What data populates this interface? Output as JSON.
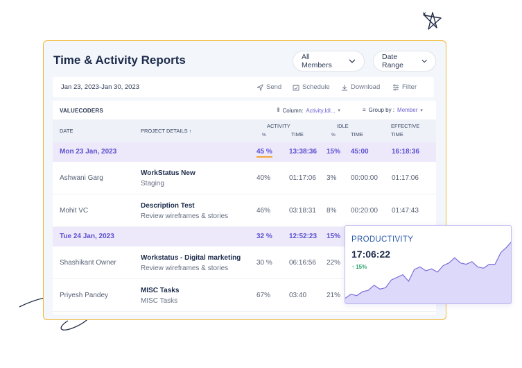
{
  "header": {
    "title": "Time & Activity Reports",
    "members_dropdown": "All Members",
    "date_dropdown": "Date Range"
  },
  "toolbar": {
    "date_range": "Jan 23, 2023-Jan 30, 2023",
    "send": "Send",
    "schedule": "Schedule",
    "download": "Download",
    "filter": "Filter"
  },
  "table": {
    "org": "VALUECODERS",
    "column_label": "Column:",
    "column_value": "Activity,Idl...",
    "groupby_label": "Group by :",
    "groupby_value": "Member",
    "headers": {
      "date": "DATE",
      "project": "PROJECT DETAILS ↑",
      "activity": "ACTIVITY",
      "activity_pct": "%",
      "activity_time": "TIME",
      "idle": "IDLE",
      "idle_pct": "%",
      "idle_time": "TIME",
      "effective": "EFFECTIVE",
      "effective_time": "TIME"
    },
    "day1": {
      "date": "Mon 23 Jan, 2023",
      "activity_pct": "45 %",
      "activity_time": "13:38:36",
      "idle_pct": "15%",
      "idle_time": "45:00",
      "effective": "16:18:36"
    },
    "row1": {
      "member": "Ashwani Garg",
      "project": "WorkStatus New",
      "task": "Staging",
      "activity_pct": "40%",
      "activity_time": "01:17:06",
      "idle_pct": "3%",
      "idle_time": "00:00:00",
      "effective": "01:17:06"
    },
    "row2": {
      "member": "Mohit VC",
      "project": "Description Test",
      "task": "Review wireframes & stories",
      "activity_pct": "46%",
      "activity_time": "03:18:31",
      "idle_pct": "8%",
      "idle_time": "00:20:00",
      "effective": "01:47:43"
    },
    "day2": {
      "date": "Tue 24 Jan, 2023",
      "activity_pct": "32 %",
      "activity_time": "12:52:23",
      "idle_pct": "15%"
    },
    "row3": {
      "member": "Shashikant Owner",
      "project": "Workstatus - Digital marketing",
      "task": "Review wireframes & stories",
      "activity_pct": "30 %",
      "activity_time": "06:16:56",
      "idle_pct": "22%"
    },
    "row4": {
      "member": "Priyesh Pandey",
      "project": "MISC Tasks",
      "task": "MISC Tasks",
      "activity_pct": "67%",
      "activity_time": "03:40",
      "idle_pct": "21%"
    }
  },
  "productivity": {
    "title": "PRODUCTIVITY",
    "time": "17:06:22",
    "delta": "↑ 15%",
    "series": [
      8,
      14,
      12,
      18,
      20,
      28,
      22,
      24,
      36,
      40,
      44,
      34,
      52,
      56,
      50,
      53,
      48,
      58,
      62,
      70,
      62,
      60,
      64,
      56,
      54,
      60,
      60,
      78,
      86,
      96
    ]
  },
  "colors": {
    "accent": "#5b4fcf",
    "card_border": "#f2b935",
    "chart_fill": "#ddd9fa",
    "chart_line": "#7a70d8",
    "positive": "#29a36a"
  }
}
